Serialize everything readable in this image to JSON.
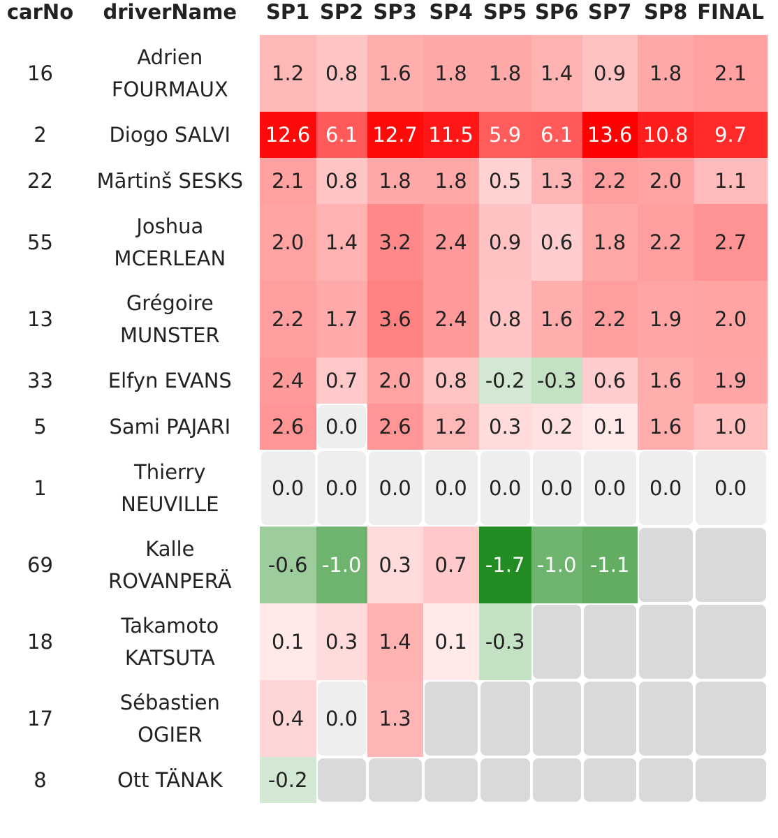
{
  "chart_data": {
    "type": "heatmap",
    "columns": [
      "carNo",
      "driverName",
      "SP1",
      "SP2",
      "SP3",
      "SP4",
      "SP5",
      "SP6",
      "SP7",
      "SP8",
      "FINAL"
    ],
    "stage_columns": [
      "SP1",
      "SP2",
      "SP3",
      "SP4",
      "SP5",
      "SP6",
      "SP7",
      "SP8",
      "FINAL"
    ],
    "rows": [
      {
        "carNo": "16",
        "driverName": "Adrien FOURMAUX",
        "values": [
          1.2,
          0.8,
          1.6,
          1.8,
          1.8,
          1.4,
          0.9,
          1.8,
          2.1
        ]
      },
      {
        "carNo": "2",
        "driverName": "Diogo SALVI",
        "values": [
          12.6,
          6.1,
          12.7,
          11.5,
          5.9,
          6.1,
          13.6,
          10.8,
          9.7
        ]
      },
      {
        "carNo": "22",
        "driverName": "Mārtinš SESKS",
        "values": [
          2.1,
          0.8,
          1.8,
          1.8,
          0.5,
          1.3,
          2.2,
          2.0,
          1.1
        ]
      },
      {
        "carNo": "55",
        "driverName": "Joshua MCERLEAN",
        "values": [
          2.0,
          1.4,
          3.2,
          2.4,
          0.9,
          0.6,
          1.8,
          2.2,
          2.7
        ]
      },
      {
        "carNo": "13",
        "driverName": "Grégoire MUNSTER",
        "values": [
          2.2,
          1.7,
          3.6,
          2.4,
          0.8,
          1.6,
          2.2,
          1.9,
          2.0
        ]
      },
      {
        "carNo": "33",
        "driverName": "Elfyn EVANS",
        "values": [
          2.4,
          0.7,
          2.0,
          0.8,
          -0.2,
          -0.3,
          0.6,
          1.6,
          1.9
        ]
      },
      {
        "carNo": "5",
        "driverName": "Sami PAJARI",
        "values": [
          2.6,
          0.0,
          2.6,
          1.2,
          0.3,
          0.2,
          0.1,
          1.6,
          1.0
        ]
      },
      {
        "carNo": "1",
        "driverName": "Thierry NEUVILLE",
        "values": [
          0.0,
          0.0,
          0.0,
          0.0,
          0.0,
          0.0,
          0.0,
          0.0,
          0.0
        ]
      },
      {
        "carNo": "69",
        "driverName": "Kalle ROVANPERÄ",
        "values": [
          -0.6,
          -1.0,
          0.3,
          0.7,
          -1.7,
          -1.0,
          -1.1,
          null,
          null
        ]
      },
      {
        "carNo": "18",
        "driverName": "Takamoto KATSUTA",
        "values": [
          0.1,
          0.3,
          1.4,
          0.1,
          -0.3,
          null,
          null,
          null,
          null
        ]
      },
      {
        "carNo": "17",
        "driverName": "Sébastien OGIER",
        "values": [
          0.4,
          0.0,
          1.3,
          null,
          null,
          null,
          null,
          null,
          null
        ]
      },
      {
        "carNo": "8",
        "driverName": "Ott TÄNAK",
        "values": [
          -0.2,
          null,
          null,
          null,
          null,
          null,
          null,
          null,
          null
        ]
      }
    ],
    "colors": {
      "positive_max": "#ff0000",
      "negative_max": "#1f8a1f",
      "zero": "#eeeeee",
      "missing": "#d9d9d9"
    }
  }
}
